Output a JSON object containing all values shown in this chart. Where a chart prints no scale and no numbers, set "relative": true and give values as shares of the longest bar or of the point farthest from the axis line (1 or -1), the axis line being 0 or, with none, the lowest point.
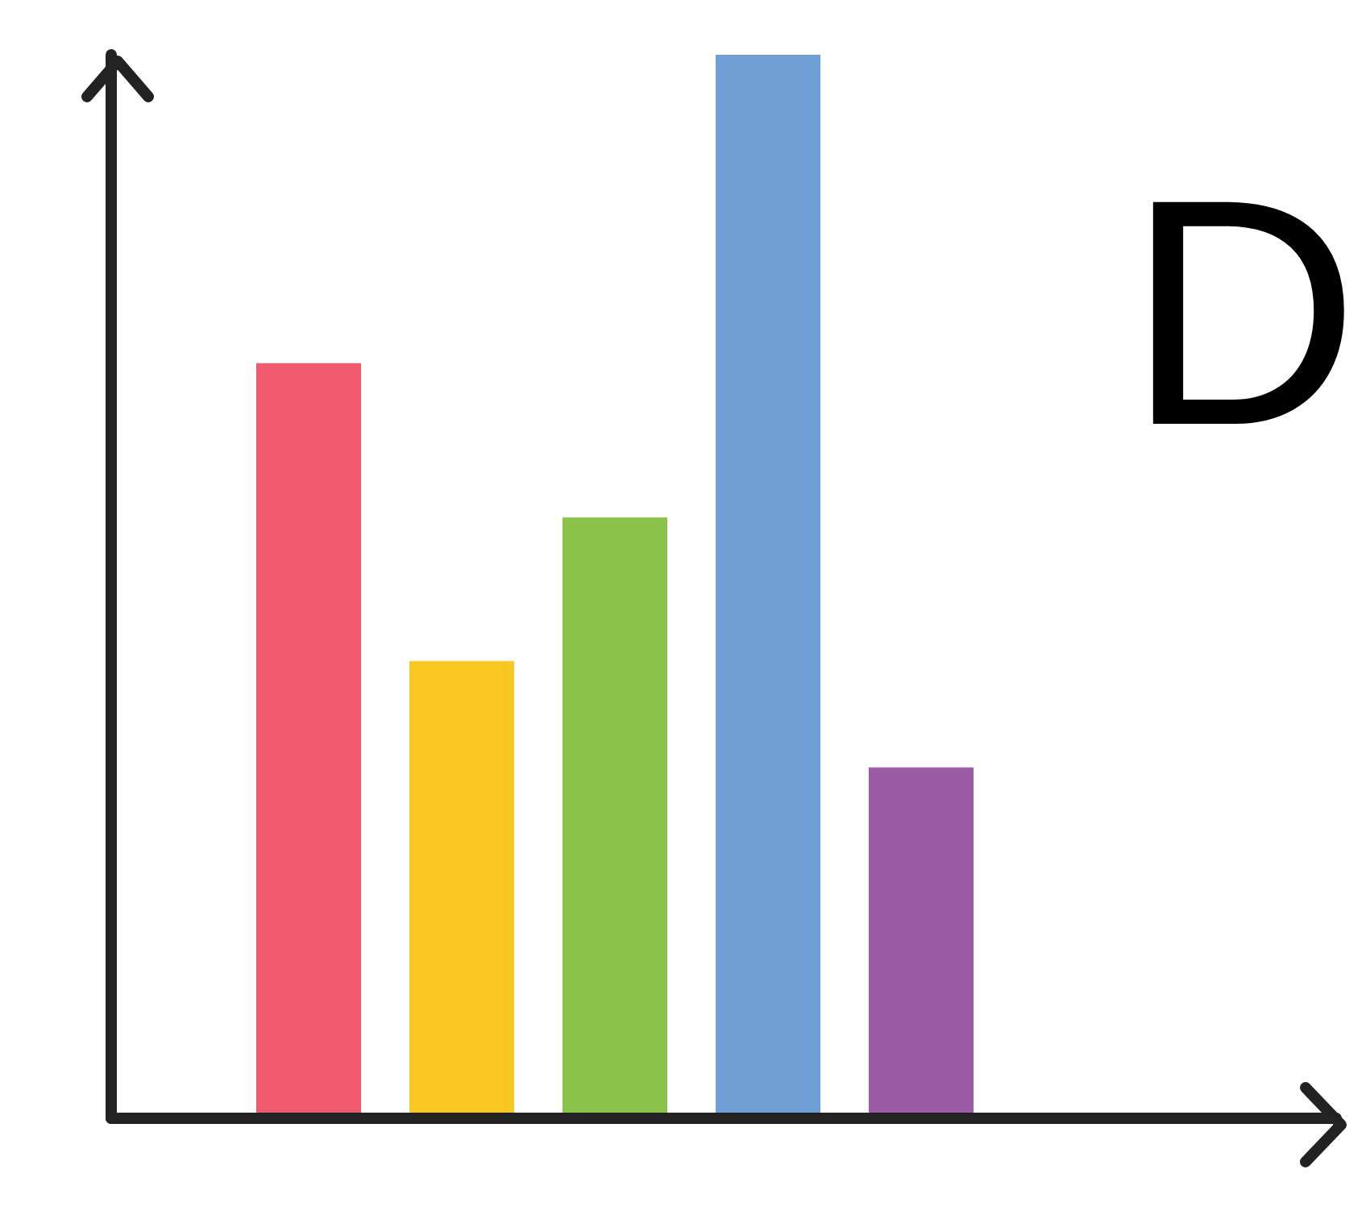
{
  "chart_data": {
    "type": "bar",
    "relative": true,
    "categories": [
      null,
      null,
      null,
      null,
      null
    ],
    "values": [
      0.71,
      0.43,
      0.565,
      1,
      0.33
    ],
    "colors": [
      "#ef5a6f",
      "#f9c823",
      "#8bc34a",
      "#6f9fd5",
      "#9c5ba5"
    ],
    "annotations": [
      "D"
    ]
  }
}
